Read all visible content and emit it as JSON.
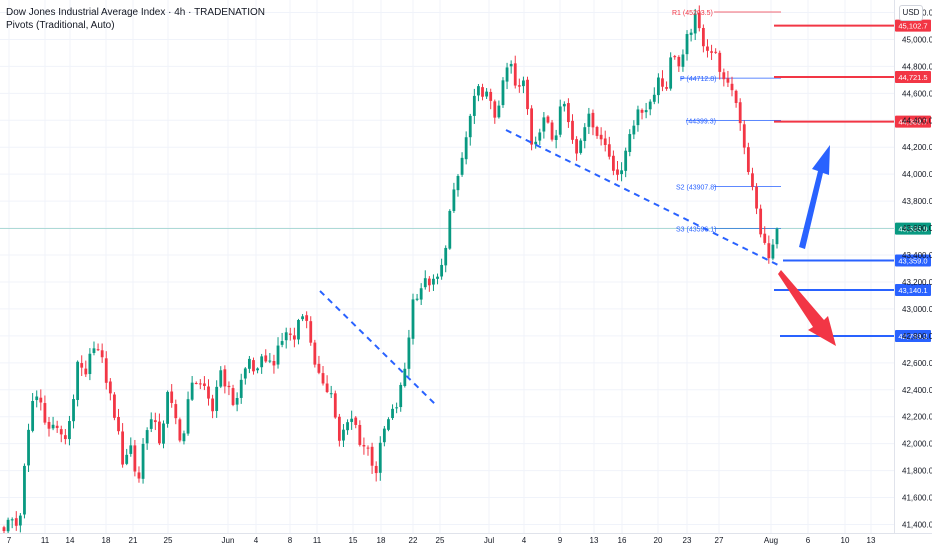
{
  "header": {
    "title": "Dow Jones Industrial Average Index · 4h · TRADENATION",
    "indicator": "Pivots (Traditional, Auto)",
    "currency": "USD"
  },
  "chart_data": {
    "type": "candlestick",
    "y_range": [
      41300,
      45280
    ],
    "y_ticks": [
      "45,200.0",
      "45,000.0",
      "44,800.0",
      "44,600.0",
      "44,400.0",
      "44,200.0",
      "44,000.0",
      "43,800.0",
      "43,600.0",
      "43,400.0",
      "43,200.0",
      "43,000.0",
      "42,800.0",
      "42,600.0",
      "42,400.0",
      "42,200.0",
      "42,000.0",
      "41,800.0",
      "41,600.0",
      "41,400.0"
    ],
    "x_ticks": [
      "7",
      "11",
      "14",
      "18",
      "21",
      "25",
      "Jun",
      "4",
      "8",
      "11",
      "15",
      "18",
      "22",
      "25",
      "Jul",
      "4",
      "9",
      "13",
      "16",
      "20",
      "23",
      "27",
      "Aug",
      "6",
      "10",
      "13"
    ],
    "price_path": [
      41380,
      41440,
      41370,
      41950,
      42380,
      42300,
      42100,
      42150,
      41990,
      42220,
      42600,
      42480,
      42760,
      42650,
      42420,
      42190,
      41860,
      42000,
      41680,
      42120,
      42180,
      42010,
      42360,
      42200,
      41990,
      42400,
      42500,
      42380,
      42220,
      42570,
      42420,
      42280,
      42480,
      42630,
      42500,
      42660,
      42580,
      42700,
      42840,
      42760,
      43020,
      42840,
      42560,
      42390,
      42420,
      42020,
      42120,
      42190,
      42000,
      41960,
      41780,
      42080,
      42200,
      42300,
      42580,
      43060,
      43160,
      43210,
      43180,
      43320,
      43720,
      43960,
      44210,
      44500,
      44640,
      44580,
      44430,
      44620,
      44860,
      44590,
      44700,
      44240,
      44310,
      44430,
      44220,
      44610,
      44370,
      44160,
      44380,
      44420,
      44280,
      44210,
      44060,
      43960,
      44300,
      44420,
      44480,
      44540,
      44720,
      44620,
      44940,
      44760,
      45030,
      45150,
      44990,
      44920,
      44860,
      44640,
      44640,
      44420,
      44080,
      43800,
      43520,
      43360,
      43596
    ],
    "pivot_levels": [
      {
        "name": "R1",
        "value": "45203.5",
        "text": "R1 (45203.5)"
      },
      {
        "name": "P",
        "value": "44712.8",
        "text": "P (44712.8)"
      },
      {
        "name": "S1",
        "value": "44399.3",
        "text": "(44399.3)"
      },
      {
        "name": "S2",
        "value": "43907.8",
        "text": "S2 (43907.8)"
      },
      {
        "name": "S3",
        "value": "43596.1",
        "text": "S3 (43596.1)"
      }
    ],
    "horizontal_levels": [
      {
        "value": 45102.7,
        "label": "45,102.7",
        "color": "#f23645"
      },
      {
        "value": 44721.5,
        "label": "44,721.5",
        "color": "#f23645"
      },
      {
        "value": 44389.7,
        "label": "44,389.7",
        "color": "#f23645"
      },
      {
        "value": 43359.0,
        "label": "43,359.0",
        "color": "#2962ff"
      },
      {
        "value": 43140.1,
        "label": "43,140.1",
        "color": "#2962ff"
      },
      {
        "value": 42799.2,
        "label": "42,799.2",
        "color": "#2962ff"
      }
    ],
    "last_price": {
      "value": 43595.9,
      "label": "43,595.9",
      "color": "#089981"
    },
    "trendlines": [
      {
        "color": "#2962ff",
        "style": "dashed",
        "from": [
          "Jun 11",
          43160
        ],
        "to": [
          "Jun 25",
          42330
        ]
      },
      {
        "color": "#2962ff",
        "style": "dashed",
        "from": [
          "Jul 3",
          44460
        ],
        "to": [
          "Aug 1",
          43360
        ]
      }
    ],
    "arrows": [
      {
        "direction": "up",
        "color": "#2962ff"
      },
      {
        "direction": "down",
        "color": "#f23645"
      }
    ],
    "colors": {
      "up": "#089981",
      "down": "#f23645",
      "pivot": "#2962ff",
      "r1": "#f23645"
    }
  }
}
